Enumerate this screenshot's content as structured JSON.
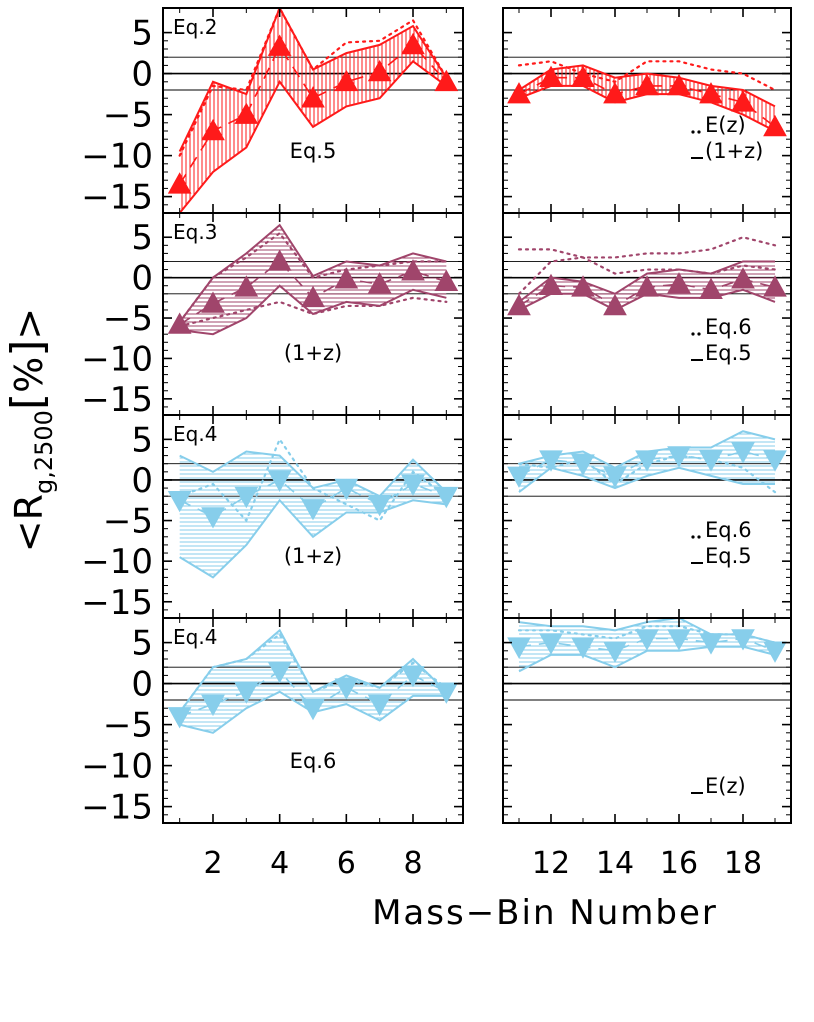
{
  "figure": {
    "ylabel": "<R_g,2500[%]>",
    "ylabel_parts": {
      "open": "<R",
      "sub": "g,2500",
      "bracket_open": "[",
      "unit": "%",
      "bracket_close": "]",
      "close": ">"
    },
    "xlabel": "Mass−Bin Number",
    "y_tick_labels": [
      "5",
      "0",
      "−5",
      "−10",
      "−15"
    ],
    "x_tick_labels_left": [
      "2",
      "4",
      "6",
      "8"
    ],
    "x_tick_labels_right": [
      "12",
      "14",
      "16",
      "18"
    ],
    "colors": {
      "red": "#ff1a1a",
      "maroon": "#a0456b",
      "sky": "#87ceeb",
      "axis": "#000000",
      "reference": "#000000"
    }
  },
  "chart_data": [
    {
      "type": "line",
      "row": 1,
      "col": 1,
      "color": "red",
      "marker": "triangle-up",
      "label_top": "Eq.2",
      "label_bottom": "Eq.5",
      "xlim": [
        0.5,
        9.5
      ],
      "ylim": [
        -17,
        8
      ],
      "reference_lines": [
        -2,
        0,
        2
      ],
      "x": [
        1,
        2,
        3,
        4,
        5,
        6,
        7,
        8,
        9
      ],
      "values": [
        -13.5,
        -7,
        -5,
        3.3,
        -3,
        -1,
        0.2,
        3.5,
        -1
      ],
      "upper": [
        -9.5,
        -1,
        -2.5,
        8.5,
        0.5,
        2.5,
        3.5,
        5.8,
        -0.5
      ],
      "lower": [
        -17,
        -12,
        -9,
        -1,
        -6.5,
        -4,
        -3,
        1.5,
        -1.5
      ],
      "dotted": [
        -10,
        -1.5,
        -2,
        8,
        0.5,
        3.8,
        4,
        6.5,
        -0.5
      ]
    },
    {
      "type": "line",
      "row": 1,
      "col": 2,
      "color": "red",
      "marker": "triangle-up",
      "legend": [
        {
          "style": "dotted",
          "label": "E(z)"
        },
        {
          "style": "solid",
          "label": "(1+z)"
        }
      ],
      "xlim": [
        10.5,
        19.5
      ],
      "ylim": [
        -17,
        8
      ],
      "reference_lines": [
        -2,
        0,
        2
      ],
      "x": [
        11,
        12,
        13,
        14,
        15,
        16,
        17,
        18,
        19
      ],
      "values": [
        -2.5,
        -0.5,
        -0.5,
        -2.5,
        -1.5,
        -1.5,
        -2.5,
        -3.5,
        -6.5
      ],
      "upper": [
        -2,
        0.5,
        1,
        -0.5,
        0,
        -0.5,
        -1.5,
        -2,
        -4
      ],
      "lower": [
        -3,
        -1.5,
        -1.5,
        -3.5,
        -2.5,
        -2.5,
        -3.5,
        -5,
        -7
      ],
      "dotted": [
        1,
        1.5,
        0,
        -1,
        1.5,
        1.5,
        0.5,
        0,
        -2
      ]
    },
    {
      "type": "line",
      "row": 2,
      "col": 1,
      "color": "maroon",
      "marker": "triangle-up",
      "label_top": "Eq.3",
      "label_bottom": "(1+z)",
      "xlim": [
        0.5,
        9.5
      ],
      "ylim": [
        -17,
        8
      ],
      "reference_lines": [
        -2,
        0,
        2
      ],
      "x": [
        1,
        2,
        3,
        4,
        5,
        6,
        7,
        8,
        9
      ],
      "values": [
        -5.8,
        -3.2,
        -1.2,
        2,
        -2.5,
        -0.2,
        -0.8,
        0.8,
        -0.5
      ],
      "upper": [
        -5.5,
        0,
        3,
        6.5,
        0.2,
        2,
        1.5,
        3,
        2
      ],
      "lower": [
        -6.5,
        -7,
        -5,
        -1,
        -4.5,
        -3,
        -3.5,
        -1.5,
        -2.5
      ],
      "dotted": [
        -5.5,
        0,
        2.5,
        5.5,
        0,
        1,
        1.5,
        2,
        2
      ],
      "dotted_low": [
        -6,
        -5,
        -4,
        -3,
        -4.5,
        -3.5,
        -3.5,
        -2.5,
        -3
      ]
    },
    {
      "type": "line",
      "row": 2,
      "col": 2,
      "color": "maroon",
      "marker": "triangle-up",
      "legend": [
        {
          "style": "dotted",
          "label": "Eq.6"
        },
        {
          "style": "solid",
          "label": "Eq.5"
        }
      ],
      "xlim": [
        10.5,
        19.5
      ],
      "ylim": [
        -17,
        8
      ],
      "reference_lines": [
        -2,
        0,
        2
      ],
      "x": [
        11,
        12,
        13,
        14,
        15,
        16,
        17,
        18,
        19
      ],
      "values": [
        -3.5,
        -1,
        -1.2,
        -3.5,
        -1.2,
        -0.8,
        -1.5,
        -0.2,
        -1.2
      ],
      "upper": [
        -3,
        0,
        -0.5,
        -2,
        0.5,
        1,
        0.5,
        2,
        2
      ],
      "lower": [
        -4,
        -2,
        -2,
        -4,
        -2,
        -2.5,
        -2.5,
        -1.5,
        -3
      ],
      "dotted": [
        3.5,
        3.5,
        2.5,
        2.5,
        3,
        3,
        3.5,
        5,
        4
      ],
      "dotted_low": [
        -2,
        2,
        2.5,
        0.5,
        1,
        1,
        0.5,
        1.5,
        1
      ]
    },
    {
      "type": "line",
      "row": 3,
      "col": 1,
      "color": "sky",
      "marker": "triangle-down",
      "label_top": "Eq.4",
      "label_bottom": "(1+z)",
      "xlim": [
        0.5,
        9.5
      ],
      "ylim": [
        -17,
        8
      ],
      "reference_lines": [
        -2,
        0,
        2
      ],
      "x": [
        1,
        2,
        3,
        4,
        5,
        6,
        7,
        8,
        9
      ],
      "values": [
        -2.5,
        -4.5,
        -2,
        0,
        -3.5,
        -1,
        -3,
        -0.5,
        -2
      ],
      "upper": [
        3,
        1,
        3.5,
        3,
        -1,
        0,
        -2,
        2.5,
        -1.5
      ],
      "lower": [
        -9.5,
        -12,
        -8,
        -2.5,
        -7,
        -4,
        -4,
        -2.5,
        -3
      ],
      "dotted": [
        -2,
        -0.5,
        -5,
        5,
        -1,
        -3,
        -5,
        1,
        -2
      ]
    },
    {
      "type": "line",
      "row": 3,
      "col": 2,
      "color": "sky",
      "marker": "triangle-down",
      "legend": [
        {
          "style": "dotted",
          "label": "Eq.6"
        },
        {
          "style": "solid",
          "label": "Eq.5"
        }
      ],
      "xlim": [
        10.5,
        19.5
      ],
      "ylim": [
        -17,
        8
      ],
      "reference_lines": [
        -2,
        0,
        2
      ],
      "x": [
        11,
        12,
        13,
        14,
        15,
        16,
        17,
        18,
        19
      ],
      "values": [
        0.5,
        2.5,
        2,
        0.5,
        2.5,
        3,
        2.5,
        3.5,
        2.5
      ],
      "upper": [
        2,
        3,
        3.5,
        1.5,
        3.5,
        4,
        4,
        6,
        5
      ],
      "lower": [
        -1.5,
        1.5,
        0.5,
        -1,
        0.5,
        1.5,
        0.5,
        -0.5,
        -0.5
      ],
      "dotted": [
        2,
        1.5,
        2.5,
        -0.5,
        2,
        3,
        2.5,
        1.5,
        -1.5
      ]
    },
    {
      "type": "line",
      "row": 4,
      "col": 1,
      "color": "sky",
      "marker": "triangle-down",
      "label_top": "Eq.4",
      "label_bottom": "Eq.6",
      "xlim": [
        0.5,
        9.5
      ],
      "ylim": [
        -17,
        8
      ],
      "reference_lines": [
        -2,
        0,
        2
      ],
      "x": [
        1,
        2,
        3,
        4,
        5,
        6,
        7,
        8,
        9
      ],
      "values": [
        -4,
        -2.5,
        -1,
        1.5,
        -3,
        -0.5,
        -2.5,
        1,
        -1
      ],
      "upper": [
        -3.5,
        2,
        3,
        6.5,
        -1,
        1,
        -0.5,
        3,
        -1
      ],
      "lower": [
        -5,
        -6,
        -3,
        -1,
        -3.5,
        -2.5,
        -4.5,
        -1.5,
        -1.5
      ],
      "dotted": [
        -3.5,
        2,
        3,
        6,
        -1,
        0.5,
        -0.5,
        2.5,
        -0.5
      ]
    },
    {
      "type": "line",
      "row": 4,
      "col": 2,
      "color": "sky",
      "marker": "triangle-down",
      "legend": [
        {
          "style": "solid",
          "label": "E(z)"
        }
      ],
      "xlim": [
        10.5,
        19.5
      ],
      "ylim": [
        -17,
        8
      ],
      "reference_lines": [
        -2,
        0,
        2
      ],
      "x": [
        11,
        12,
        13,
        14,
        15,
        16,
        17,
        18,
        19
      ],
      "values": [
        4.5,
        5,
        4.5,
        4,
        5.5,
        5.5,
        5,
        5.5,
        4
      ],
      "upper": [
        7.5,
        7,
        7,
        6.5,
        7.5,
        8,
        6,
        6,
        5
      ],
      "lower": [
        1.5,
        3.5,
        3.5,
        2,
        4,
        4,
        4.5,
        4.5,
        3.5
      ],
      "dotted": [
        6.5,
        6.5,
        6,
        5.5,
        7,
        7,
        6,
        6,
        5
      ]
    }
  ]
}
